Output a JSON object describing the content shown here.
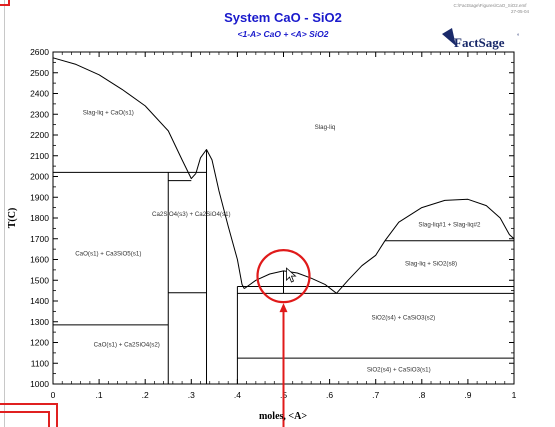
{
  "window": {
    "header_note_1": "C:\\FactSage\\Figures\\CaO_SiO2.emf",
    "header_note_2": "27-05-04"
  },
  "logo": {
    "text": "FactSage",
    "mark": "°"
  },
  "chart_data": {
    "type": "line",
    "title": "System CaO - SiO2",
    "subtitle": "<1-A> CaO + <A> SiO2",
    "xlabel": "moles, <A>",
    "ylabel": "T(C)",
    "xlim": [
      0,
      1
    ],
    "ylim": [
      1000,
      2600
    ],
    "x_ticks": [
      "0",
      ".1",
      ".2",
      ".3",
      ".4",
      ".5",
      ".6",
      ".7",
      ".8",
      ".9",
      "1"
    ],
    "y_ticks": [
      "1000",
      "1100",
      "1200",
      "1300",
      "1400",
      "1500",
      "1600",
      "1700",
      "1800",
      "1900",
      "2000",
      "2100",
      "2200",
      "2300",
      "2400",
      "2500",
      "2600"
    ],
    "grid": false,
    "series": [
      {
        "name": "liquidus-cao",
        "values": [
          [
            0,
            2572
          ],
          [
            0.05,
            2540
          ],
          [
            0.1,
            2490
          ],
          [
            0.15,
            2420
          ],
          [
            0.2,
            2340
          ],
          [
            0.25,
            2220
          ],
          [
            0.28,
            2080
          ],
          [
            0.3,
            1990
          ],
          [
            0.31,
            2015
          ]
        ]
      },
      {
        "name": "liquidus-c2s",
        "values": [
          [
            0.31,
            2015
          ],
          [
            0.32,
            2090
          ],
          [
            0.333,
            2130
          ],
          [
            0.345,
            2080
          ],
          [
            0.36,
            1930
          ],
          [
            0.38,
            1760
          ],
          [
            0.4,
            1600
          ],
          [
            0.41,
            1480
          ],
          [
            0.415,
            1460
          ]
        ]
      },
      {
        "name": "liquidus-cs",
        "values": [
          [
            0.415,
            1460
          ],
          [
            0.44,
            1500
          ],
          [
            0.47,
            1530
          ],
          [
            0.5,
            1545
          ],
          [
            0.53,
            1535
          ],
          [
            0.56,
            1510
          ],
          [
            0.59,
            1480
          ],
          [
            0.615,
            1437
          ]
        ]
      },
      {
        "name": "liquidus-silica",
        "values": [
          [
            0.615,
            1437
          ],
          [
            0.64,
            1500
          ],
          [
            0.67,
            1570
          ],
          [
            0.7,
            1620
          ],
          [
            0.72,
            1690
          ]
        ]
      },
      {
        "name": "miscibility-gap",
        "values": [
          [
            0.72,
            1690
          ],
          [
            0.75,
            1780
          ],
          [
            0.8,
            1850
          ],
          [
            0.85,
            1885
          ],
          [
            0.9,
            1890
          ],
          [
            0.94,
            1860
          ],
          [
            0.97,
            1800
          ],
          [
            0.99,
            1720
          ],
          [
            1,
            1700
          ]
        ]
      },
      {
        "name": "liquidus-sio2",
        "values": [
          [
            0.72,
            1690
          ],
          [
            0.85,
            1690
          ],
          [
            1,
            1690
          ]
        ]
      }
    ],
    "isotherms": [
      {
        "y": 2020,
        "x": [
          0,
          0.333
        ]
      },
      {
        "y": 1980,
        "x": [
          0.25,
          0.3
        ]
      },
      {
        "y": 1440,
        "x": [
          0.25,
          0.333
        ]
      },
      {
        "y": 1285,
        "x": [
          0,
          0.25
        ]
      },
      {
        "y": 1470,
        "x": [
          0.4,
          1
        ]
      },
      {
        "y": 1437,
        "x": [
          0.4,
          1
        ]
      },
      {
        "y": 1125,
        "x": [
          0.4,
          1
        ]
      }
    ],
    "verticals": [
      {
        "x": 0.25,
        "y": [
          1000,
          2020
        ]
      },
      {
        "x": 0.333,
        "y": [
          1000,
          2130
        ]
      },
      {
        "x": 0.4,
        "y": [
          1000,
          1470
        ]
      },
      {
        "x": 0.5,
        "y": [
          1437,
          1545
        ]
      }
    ],
    "phase_labels": [
      {
        "text": "Slag-liq + CaO(s1)",
        "x": 0.12,
        "y": 2300
      },
      {
        "text": "Slag-liq",
        "x": 0.59,
        "y": 2230
      },
      {
        "text": "Ca2SiO4(s3) + Ca2SiO4(s1)",
        "x": 0.3,
        "y": 1810
      },
      {
        "text": "CaO(s1) + Ca3SiO5(s1)",
        "x": 0.12,
        "y": 1620
      },
      {
        "text": "Slag-liq#1 + Slag-liq#2",
        "x": 0.86,
        "y": 1760
      },
      {
        "text": "Slag-liq + SiO2(s8)",
        "x": 0.82,
        "y": 1570
      },
      {
        "text": "SiO2(s4) + CaSiO3(s2)",
        "x": 0.76,
        "y": 1310
      },
      {
        "text": "CaO(s1) + Ca2SiO4(s2)",
        "x": 0.16,
        "y": 1180
      },
      {
        "text": "SiO2(s4) + CaSiO3(s1)",
        "x": 0.75,
        "y": 1060
      }
    ],
    "annotation": {
      "circle_center": [
        0.5,
        1520
      ],
      "arrow_x": 0.5,
      "color": "#e01a1a"
    }
  },
  "colors": {
    "title": "#1a1acc",
    "axis": "#000000",
    "annotation": "#e01a1a",
    "logo": "#1a2a6a"
  }
}
